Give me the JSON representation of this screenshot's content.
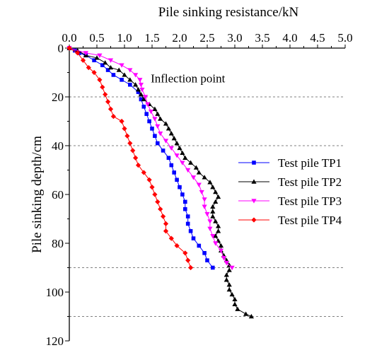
{
  "chart_data": {
    "type": "scatter",
    "xlabel": "Pile sinking resistance/kN",
    "ylabel": "Pile sinking depth/cm",
    "x_axis_position": "top",
    "y_axis_inverted": true,
    "xlim": [
      0,
      5
    ],
    "ylim": [
      0,
      120
    ],
    "x_ticks": [
      "0.0",
      "0.5",
      "1.0",
      "1.5",
      "2.0",
      "2.5",
      "3.0",
      "3.5",
      "4.0",
      "4.5",
      "5.0"
    ],
    "y_ticks": [
      "0",
      "20",
      "40",
      "60",
      "80",
      "100",
      "120"
    ],
    "reference_lines_y": [
      20,
      40,
      90,
      110
    ],
    "reference_line_style": "dashed gray",
    "legend_position": "right",
    "annotation": {
      "text": "Inflection point",
      "x": 1.45,
      "y": 14
    },
    "series": [
      {
        "name": "Test pile  TP1",
        "color": "#0000ff",
        "marker": "square",
        "points": [
          [
            0.0,
            0
          ],
          [
            0.1,
            1
          ],
          [
            0.18,
            2
          ],
          [
            0.3,
            3
          ],
          [
            0.45,
            5
          ],
          [
            0.6,
            7
          ],
          [
            0.7,
            9
          ],
          [
            0.8,
            11
          ],
          [
            0.95,
            13
          ],
          [
            1.1,
            15
          ],
          [
            1.25,
            18
          ],
          [
            1.3,
            21
          ],
          [
            1.35,
            24
          ],
          [
            1.4,
            27
          ],
          [
            1.45,
            30
          ],
          [
            1.5,
            33
          ],
          [
            1.55,
            36
          ],
          [
            1.6,
            39
          ],
          [
            1.7,
            42
          ],
          [
            1.8,
            45
          ],
          [
            1.85,
            48
          ],
          [
            1.9,
            51
          ],
          [
            1.95,
            54
          ],
          [
            2.0,
            57
          ],
          [
            2.05,
            60
          ],
          [
            2.1,
            63
          ],
          [
            2.1,
            66
          ],
          [
            2.15,
            69
          ],
          [
            2.15,
            72
          ],
          [
            2.2,
            75
          ],
          [
            2.25,
            78
          ],
          [
            2.35,
            81
          ],
          [
            2.45,
            84
          ],
          [
            2.5,
            87
          ],
          [
            2.6,
            90
          ]
        ]
      },
      {
        "name": "Test pile  TP2",
        "color": "#000000",
        "marker": "triangle-up",
        "points": [
          [
            0.0,
            0
          ],
          [
            0.15,
            1
          ],
          [
            0.3,
            3
          ],
          [
            0.5,
            4
          ],
          [
            0.65,
            6
          ],
          [
            0.75,
            8
          ],
          [
            0.9,
            9
          ],
          [
            1.0,
            11
          ],
          [
            1.1,
            13
          ],
          [
            1.2,
            15
          ],
          [
            1.25,
            17
          ],
          [
            1.3,
            19
          ],
          [
            1.35,
            21
          ],
          [
            1.45,
            23
          ],
          [
            1.55,
            25
          ],
          [
            1.6,
            27
          ],
          [
            1.65,
            29
          ],
          [
            1.75,
            31
          ],
          [
            1.8,
            33
          ],
          [
            1.85,
            35
          ],
          [
            1.9,
            37
          ],
          [
            1.95,
            39
          ],
          [
            2.0,
            41
          ],
          [
            2.05,
            43
          ],
          [
            2.1,
            45
          ],
          [
            2.2,
            47
          ],
          [
            2.3,
            49
          ],
          [
            2.35,
            51
          ],
          [
            2.45,
            53
          ],
          [
            2.55,
            55
          ],
          [
            2.6,
            57
          ],
          [
            2.65,
            59
          ],
          [
            2.7,
            61
          ],
          [
            2.65,
            63
          ],
          [
            2.6,
            65
          ],
          [
            2.6,
            67
          ],
          [
            2.6,
            69
          ],
          [
            2.65,
            71
          ],
          [
            2.7,
            73
          ],
          [
            2.7,
            75
          ],
          [
            2.65,
            77
          ],
          [
            2.7,
            79
          ],
          [
            2.75,
            81
          ],
          [
            2.75,
            83
          ],
          [
            2.8,
            85
          ],
          [
            2.85,
            87
          ],
          [
            2.9,
            89
          ],
          [
            2.9,
            91
          ],
          [
            2.85,
            93
          ],
          [
            2.85,
            95
          ],
          [
            2.9,
            97
          ],
          [
            2.9,
            99
          ],
          [
            2.95,
            101
          ],
          [
            3.0,
            103
          ],
          [
            3.0,
            105
          ],
          [
            3.05,
            107
          ],
          [
            3.2,
            109
          ],
          [
            3.3,
            110
          ]
        ]
      },
      {
        "name": "Test pile  TP3",
        "color": "#ff00ff",
        "marker": "triangle-down",
        "points": [
          [
            0.0,
            0
          ],
          [
            0.3,
            2
          ],
          [
            0.55,
            3
          ],
          [
            0.75,
            5
          ],
          [
            0.95,
            7
          ],
          [
            1.1,
            9
          ],
          [
            1.2,
            11
          ],
          [
            1.28,
            13
          ],
          [
            1.3,
            15
          ],
          [
            1.32,
            17
          ],
          [
            1.38,
            20
          ],
          [
            1.42,
            23
          ],
          [
            1.48,
            26
          ],
          [
            1.55,
            29
          ],
          [
            1.6,
            32
          ],
          [
            1.65,
            35
          ],
          [
            1.75,
            38
          ],
          [
            1.85,
            41
          ],
          [
            1.95,
            44
          ],
          [
            2.05,
            47
          ],
          [
            2.15,
            50
          ],
          [
            2.25,
            53
          ],
          [
            2.35,
            56
          ],
          [
            2.4,
            59
          ],
          [
            2.45,
            62
          ],
          [
            2.45,
            65
          ],
          [
            2.5,
            68
          ],
          [
            2.55,
            71
          ],
          [
            2.55,
            74
          ],
          [
            2.6,
            77
          ],
          [
            2.65,
            80
          ],
          [
            2.75,
            83
          ],
          [
            2.8,
            86
          ],
          [
            2.85,
            88
          ],
          [
            2.95,
            90
          ]
        ]
      },
      {
        "name": "Test pile  TP4",
        "color": "#ff0000",
        "marker": "diamond",
        "points": [
          [
            0.0,
            0
          ],
          [
            0.15,
            2
          ],
          [
            0.25,
            5
          ],
          [
            0.35,
            8
          ],
          [
            0.45,
            10
          ],
          [
            0.55,
            13
          ],
          [
            0.6,
            16
          ],
          [
            0.65,
            19
          ],
          [
            0.7,
            22
          ],
          [
            0.75,
            25
          ],
          [
            0.8,
            28
          ],
          [
            0.95,
            30
          ],
          [
            1.0,
            33
          ],
          [
            1.05,
            36
          ],
          [
            1.1,
            39
          ],
          [
            1.15,
            42
          ],
          [
            1.2,
            45
          ],
          [
            1.25,
            48
          ],
          [
            1.35,
            51
          ],
          [
            1.45,
            54
          ],
          [
            1.5,
            57
          ],
          [
            1.55,
            60
          ],
          [
            1.6,
            63
          ],
          [
            1.65,
            66
          ],
          [
            1.7,
            69
          ],
          [
            1.75,
            72
          ],
          [
            1.75,
            75
          ],
          [
            1.85,
            78
          ],
          [
            1.95,
            81
          ],
          [
            2.1,
            84
          ],
          [
            2.15,
            87
          ],
          [
            2.2,
            90
          ]
        ]
      }
    ]
  }
}
